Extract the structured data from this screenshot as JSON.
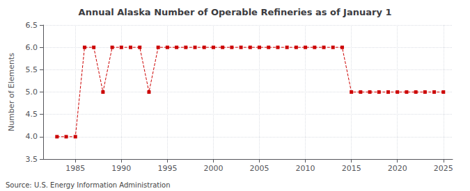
{
  "chart_data": {
    "type": "line",
    "title": "Annual Alaska Number of Operable Refineries as of January 1",
    "ylabel": "Number of Elements",
    "annotation": "Source: U.S. Energy Information Administration",
    "x": [
      1983,
      1984,
      1985,
      1986,
      1987,
      1988,
      1989,
      1990,
      1991,
      1992,
      1993,
      1994,
      1995,
      1996,
      1997,
      1998,
      1999,
      2000,
      2001,
      2002,
      2003,
      2004,
      2005,
      2006,
      2007,
      2008,
      2009,
      2010,
      2011,
      2012,
      2013,
      2014,
      2015,
      2016,
      2017,
      2018,
      2019,
      2020,
      2021,
      2022,
      2023,
      2024,
      2025
    ],
    "values": [
      4,
      4,
      4,
      6,
      6,
      5,
      6,
      6,
      6,
      6,
      5,
      6,
      6,
      6,
      6,
      6,
      6,
      6,
      6,
      6,
      6,
      6,
      6,
      6,
      6,
      6,
      6,
      6,
      6,
      6,
      6,
      6,
      5,
      5,
      5,
      5,
      5,
      5,
      5,
      5,
      5,
      5,
      5
    ],
    "color": "#cc0000",
    "marker": "square",
    "line_style": "dashed",
    "xlim": [
      1981.5,
      2026
    ],
    "xticks": [
      1985,
      1990,
      1995,
      2000,
      2005,
      2010,
      2015,
      2020,
      2025
    ],
    "ylim": [
      3.5,
      6.5
    ],
    "yticks": [
      3.5,
      {
        "value": 4.0,
        "label": "4.0"
      },
      4.5,
      {
        "value": 5.0,
        "label": "5.0"
      },
      5.5,
      {
        "value": 6.0,
        "label": "6.0"
      },
      6.5
    ],
    "grid": true
  }
}
